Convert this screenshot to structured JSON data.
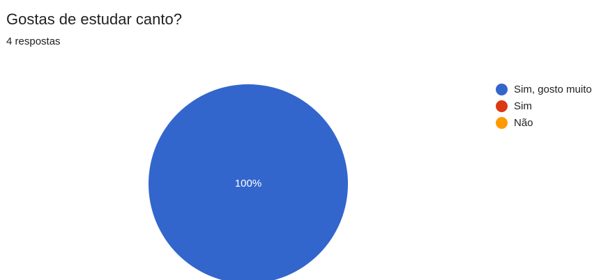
{
  "header": {
    "title": "Gostas de estudar canto?",
    "subtitle": "4 respostas"
  },
  "chart_data": {
    "type": "pie",
    "title": "Gostas de estudar canto?",
    "total_responses": 4,
    "legend_position": "right",
    "categories": [
      "Sim, gosto muito",
      "Sim",
      "Não"
    ],
    "values": [
      4,
      0,
      0
    ],
    "percent_labels": [
      "100%",
      "",
      ""
    ],
    "colors": [
      "#3366cc",
      "#dc3912",
      "#ff9900"
    ]
  }
}
